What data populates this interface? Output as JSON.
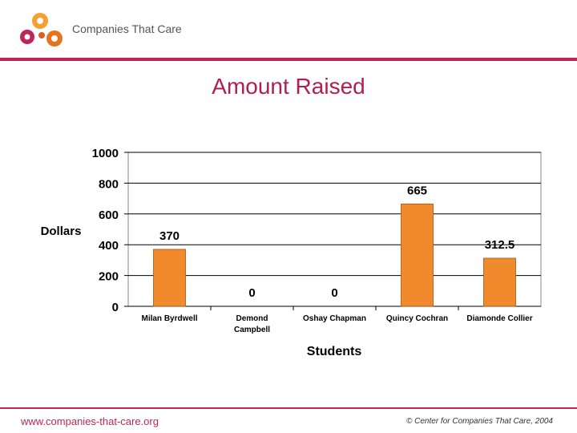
{
  "header": {
    "brand": "Companies That Care",
    "accent_color": "#c0245a",
    "logo_colors": [
      "#f5a030",
      "#e8731f",
      "#c0245a"
    ]
  },
  "chart_data": {
    "type": "bar",
    "title": "Amount Raised",
    "xlabel": "Students",
    "ylabel": "Dollars",
    "categories": [
      "Milan Byrdwell",
      "Demond Campbell",
      "Oshay Chapman",
      "Quincy Cochran",
      "Diamonde Collier"
    ],
    "category_lines": [
      [
        "Milan Byrdwell"
      ],
      [
        "Demond",
        "Campbell"
      ],
      [
        "Oshay Chapman"
      ],
      [
        "Quincy Cochran"
      ],
      [
        "Diamonde Collier"
      ]
    ],
    "values": [
      370,
      0,
      0,
      665,
      312.5
    ],
    "data_labels": [
      "370",
      "0",
      "0",
      "665",
      "312.5"
    ],
    "ylim": [
      0,
      1000
    ],
    "yticks": [
      0,
      200,
      400,
      600,
      800,
      1000
    ],
    "grid": true,
    "bar_color": "#f08a2c",
    "legend": "none"
  },
  "footer": {
    "url": "www.companies-that-care.org",
    "copyright": "© Center for Companies That Care, 2004"
  }
}
